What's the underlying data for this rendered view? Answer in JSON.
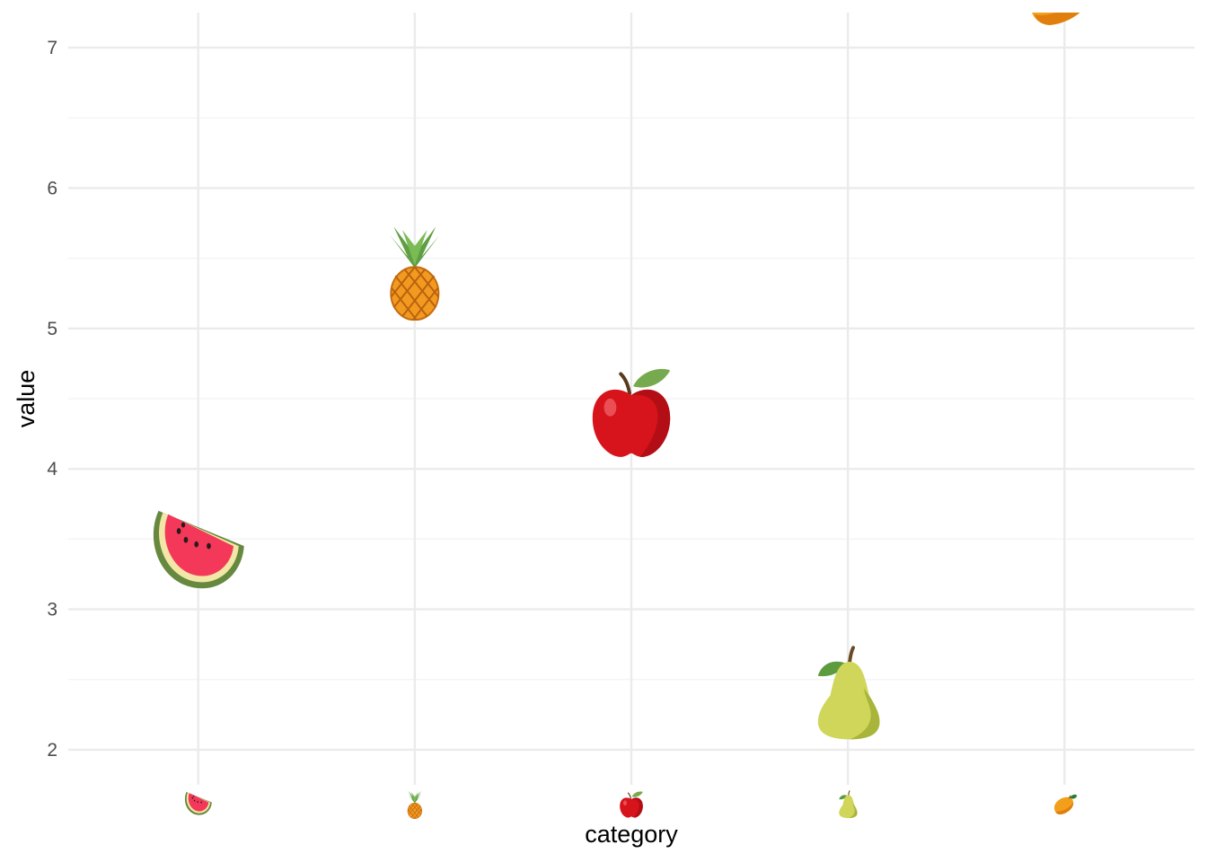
{
  "chart_data": {
    "type": "scatter",
    "title": "",
    "xlabel": "category",
    "ylabel": "value",
    "ylim": [
      1.75,
      7.25
    ],
    "y_ticks": [
      2,
      3,
      4,
      5,
      6,
      7
    ],
    "grid": true,
    "legend": "none",
    "points": [
      {
        "category": "watermelon",
        "glyph": "watermelon-icon",
        "value": 3.4
      },
      {
        "category": "pineapple",
        "glyph": "pineapple-icon",
        "value": 5.4
      },
      {
        "category": "apple",
        "glyph": "red-apple-icon",
        "value": 4.4
      },
      {
        "category": "pear",
        "glyph": "pear-icon",
        "value": 2.4
      },
      {
        "category": "mango",
        "glyph": "mango-icon",
        "value": 7.4
      }
    ]
  }
}
